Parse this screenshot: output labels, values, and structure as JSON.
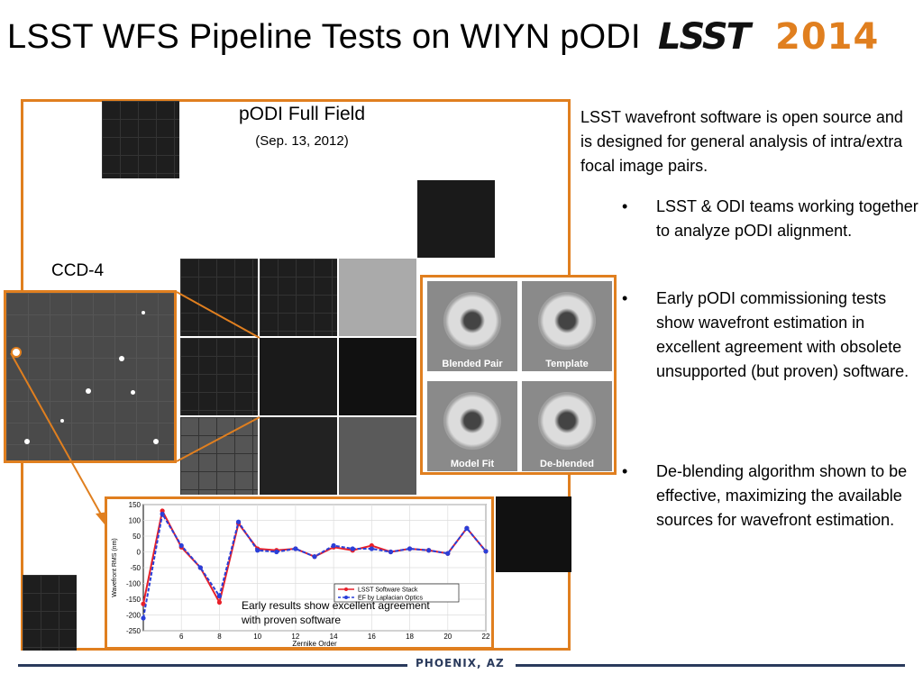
{
  "slide": {
    "title": "LSST WFS Pipeline Tests on WIYN pODI",
    "logo_lsst": "LSST",
    "logo_year": "2014",
    "footer": "PHOENIX, AZ"
  },
  "field": {
    "title": "pODI Full Field",
    "subtitle": "(Sep. 13, 2012)",
    "ccd_label": "CCD-4"
  },
  "donuts": [
    {
      "label": "Blended Pair"
    },
    {
      "label": "Template"
    },
    {
      "label": "Model Fit"
    },
    {
      "label": "De-blended"
    }
  ],
  "text": {
    "intro": "LSST wavefront software is open source and is designed for general analysis of intra/extra focal image pairs.",
    "bullets": [
      "LSST & ODI teams working together to analyze pODI alignment.",
      "Early pODI commissioning tests show wavefront estimation in excellent agreement with obsolete unsupported (but proven) software.",
      "De-blending algorithm shown to be effective, maximizing the available sources for wavefront estimation."
    ],
    "bullet_char": "•"
  },
  "chart_caption": "Early results show excellent agreement with proven software",
  "chart_data": {
    "type": "line",
    "title": "",
    "xlabel": "Zernike Order",
    "ylabel": "Wavefront RMS (nm)",
    "xlim": [
      4,
      22
    ],
    "ylim": [
      -250,
      150
    ],
    "xticks": [
      6,
      8,
      10,
      12,
      14,
      16,
      18,
      20,
      22
    ],
    "yticks": [
      -250,
      -200,
      -150,
      -100,
      -50,
      0,
      50,
      100,
      150
    ],
    "grid": true,
    "legend_placement": "bottom-right",
    "x": [
      4,
      5,
      6,
      7,
      8,
      9,
      10,
      11,
      12,
      13,
      14,
      15,
      16,
      17,
      18,
      19,
      20,
      21,
      22
    ],
    "series": [
      {
        "name": "LSST Software Stack",
        "color": "#e8202a",
        "marker": "circle",
        "values": [
          -165,
          130,
          15,
          -50,
          -160,
          90,
          10,
          5,
          10,
          -15,
          15,
          5,
          20,
          0,
          10,
          5,
          -5,
          75,
          2
        ]
      },
      {
        "name": "EF by Laplacian Optics",
        "color": "#2a3fd8",
        "marker": "circle",
        "values": [
          -210,
          120,
          20,
          -50,
          -140,
          95,
          5,
          0,
          10,
          -15,
          20,
          10,
          10,
          0,
          10,
          5,
          -5,
          75,
          2
        ]
      }
    ]
  }
}
